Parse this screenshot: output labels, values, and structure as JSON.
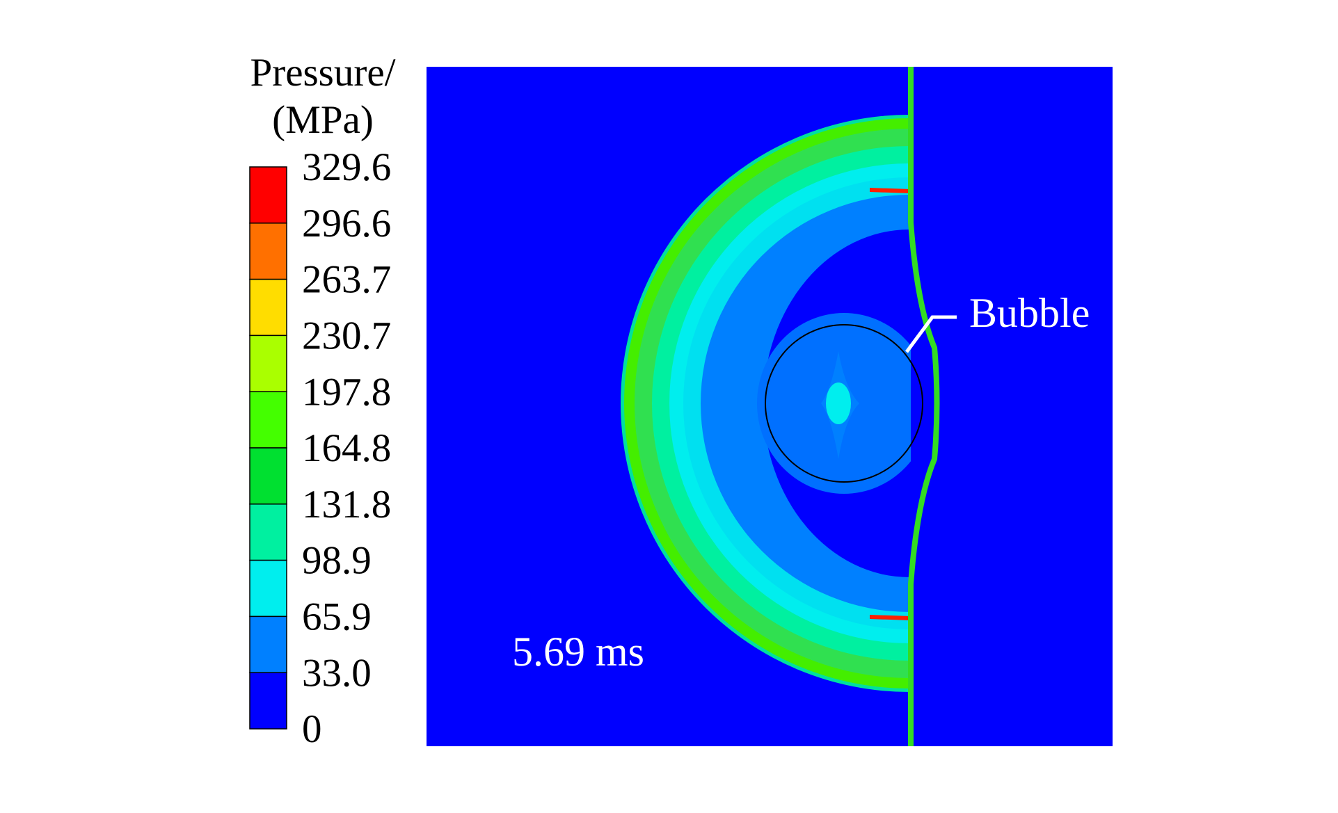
{
  "legend": {
    "title_line1": "Pressure/",
    "title_line2": "(MPa)",
    "labels": [
      "329.6",
      "296.6",
      "263.7",
      "230.7",
      "197.8",
      "164.8",
      "131.8",
      "98.9",
      "65.9",
      "33.0",
      "0"
    ],
    "colors": [
      "#ff0000",
      "#ff7000",
      "#ffdd00",
      "#aaff00",
      "#44ff00",
      "#00e030",
      "#00f0a0",
      "#00eeee",
      "#0080ff",
      "#0000ff"
    ]
  },
  "annotations": {
    "time": "5.69 ms",
    "bubble": "Bubble"
  }
}
